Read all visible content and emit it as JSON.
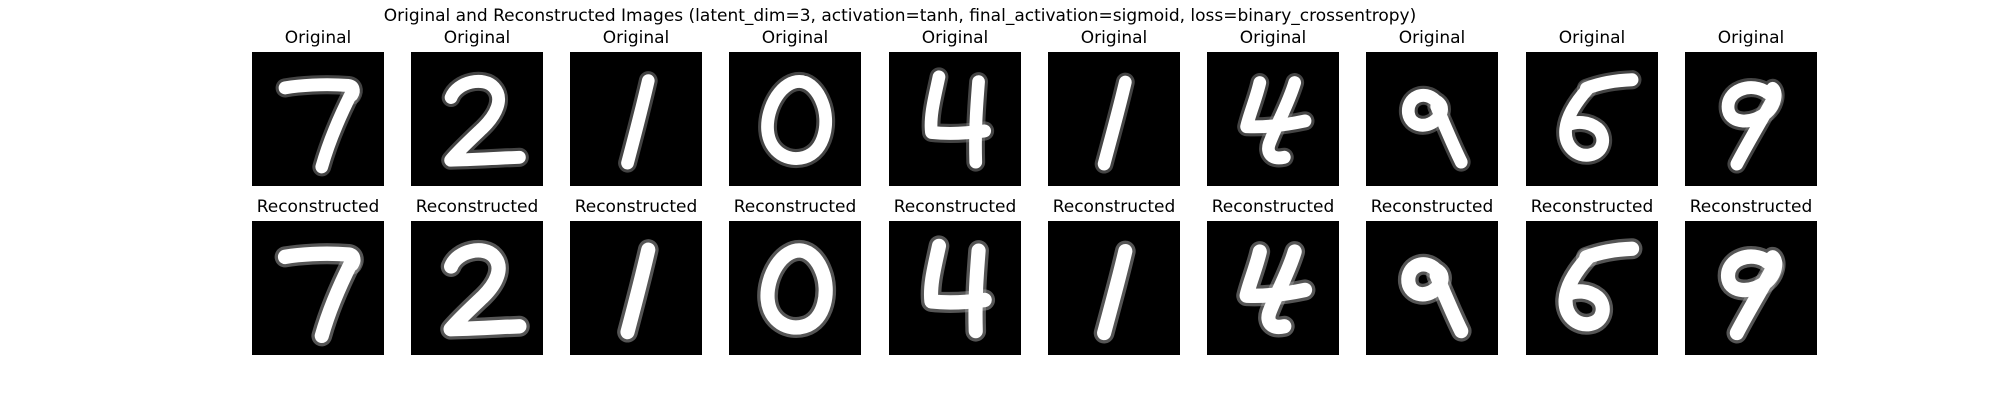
{
  "figure": {
    "title": "Original and Reconstructed Images (latent_dim=3, activation=tanh, final_activation=sigmoid, loss=binary_crossentropy)",
    "background_color": "#ffffff",
    "panel_background_color": "#000000",
    "digit_color": "#ffffff"
  },
  "rows": [
    {
      "row_title": "Original",
      "digits": [
        "7",
        "2",
        "1",
        "0",
        "4",
        "1",
        "4",
        "9",
        "5",
        "9"
      ]
    },
    {
      "row_title": "Reconstructed",
      "digits": [
        "7",
        "2",
        "1",
        "0",
        "4",
        "1",
        "4",
        "9",
        "5",
        "9"
      ]
    }
  ]
}
